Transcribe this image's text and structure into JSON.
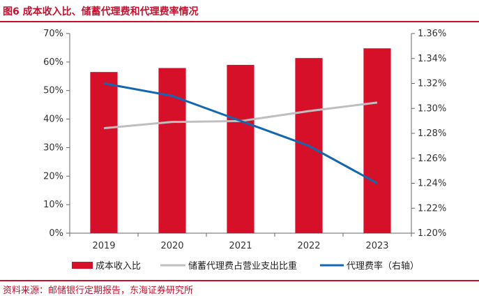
{
  "figure": {
    "title": "图6 成本收入比、储蓄代理费和代理费率情况",
    "source": "资料来源：邮储银行定期报告，东海证券研究所"
  },
  "chart_data": {
    "type": "bar",
    "categories": [
      "2019",
      "2020",
      "2021",
      "2022",
      "2023"
    ],
    "series": [
      {
        "name": "成本收入比",
        "type": "bar",
        "axis": "left",
        "values": [
          56.5,
          57.9,
          59.0,
          61.4,
          64.8
        ],
        "color": "#d7102a"
      },
      {
        "name": "储蓄代理费占营业支出比重",
        "type": "line",
        "axis": "left",
        "values": [
          36.8,
          39.0,
          39.3,
          42.8,
          45.8
        ],
        "color": "#bfbfbf"
      },
      {
        "name": "代理费率（右轴）",
        "type": "line",
        "axis": "right",
        "values": [
          1.32,
          1.31,
          1.29,
          1.27,
          1.24
        ],
        "color": "#1167b1"
      }
    ],
    "y_left": {
      "min": 0,
      "max": 0.7,
      "ticks": [
        "0%",
        "10%",
        "20%",
        "30%",
        "40%",
        "50%",
        "60%",
        "70%"
      ]
    },
    "y_right": {
      "min": 1.2,
      "max": 1.36,
      "ticks": [
        "1.20%",
        "1.22%",
        "1.24%",
        "1.26%",
        "1.28%",
        "1.30%",
        "1.32%",
        "1.34%",
        "1.36%"
      ]
    },
    "legend_position": "bottom",
    "grid": false
  }
}
